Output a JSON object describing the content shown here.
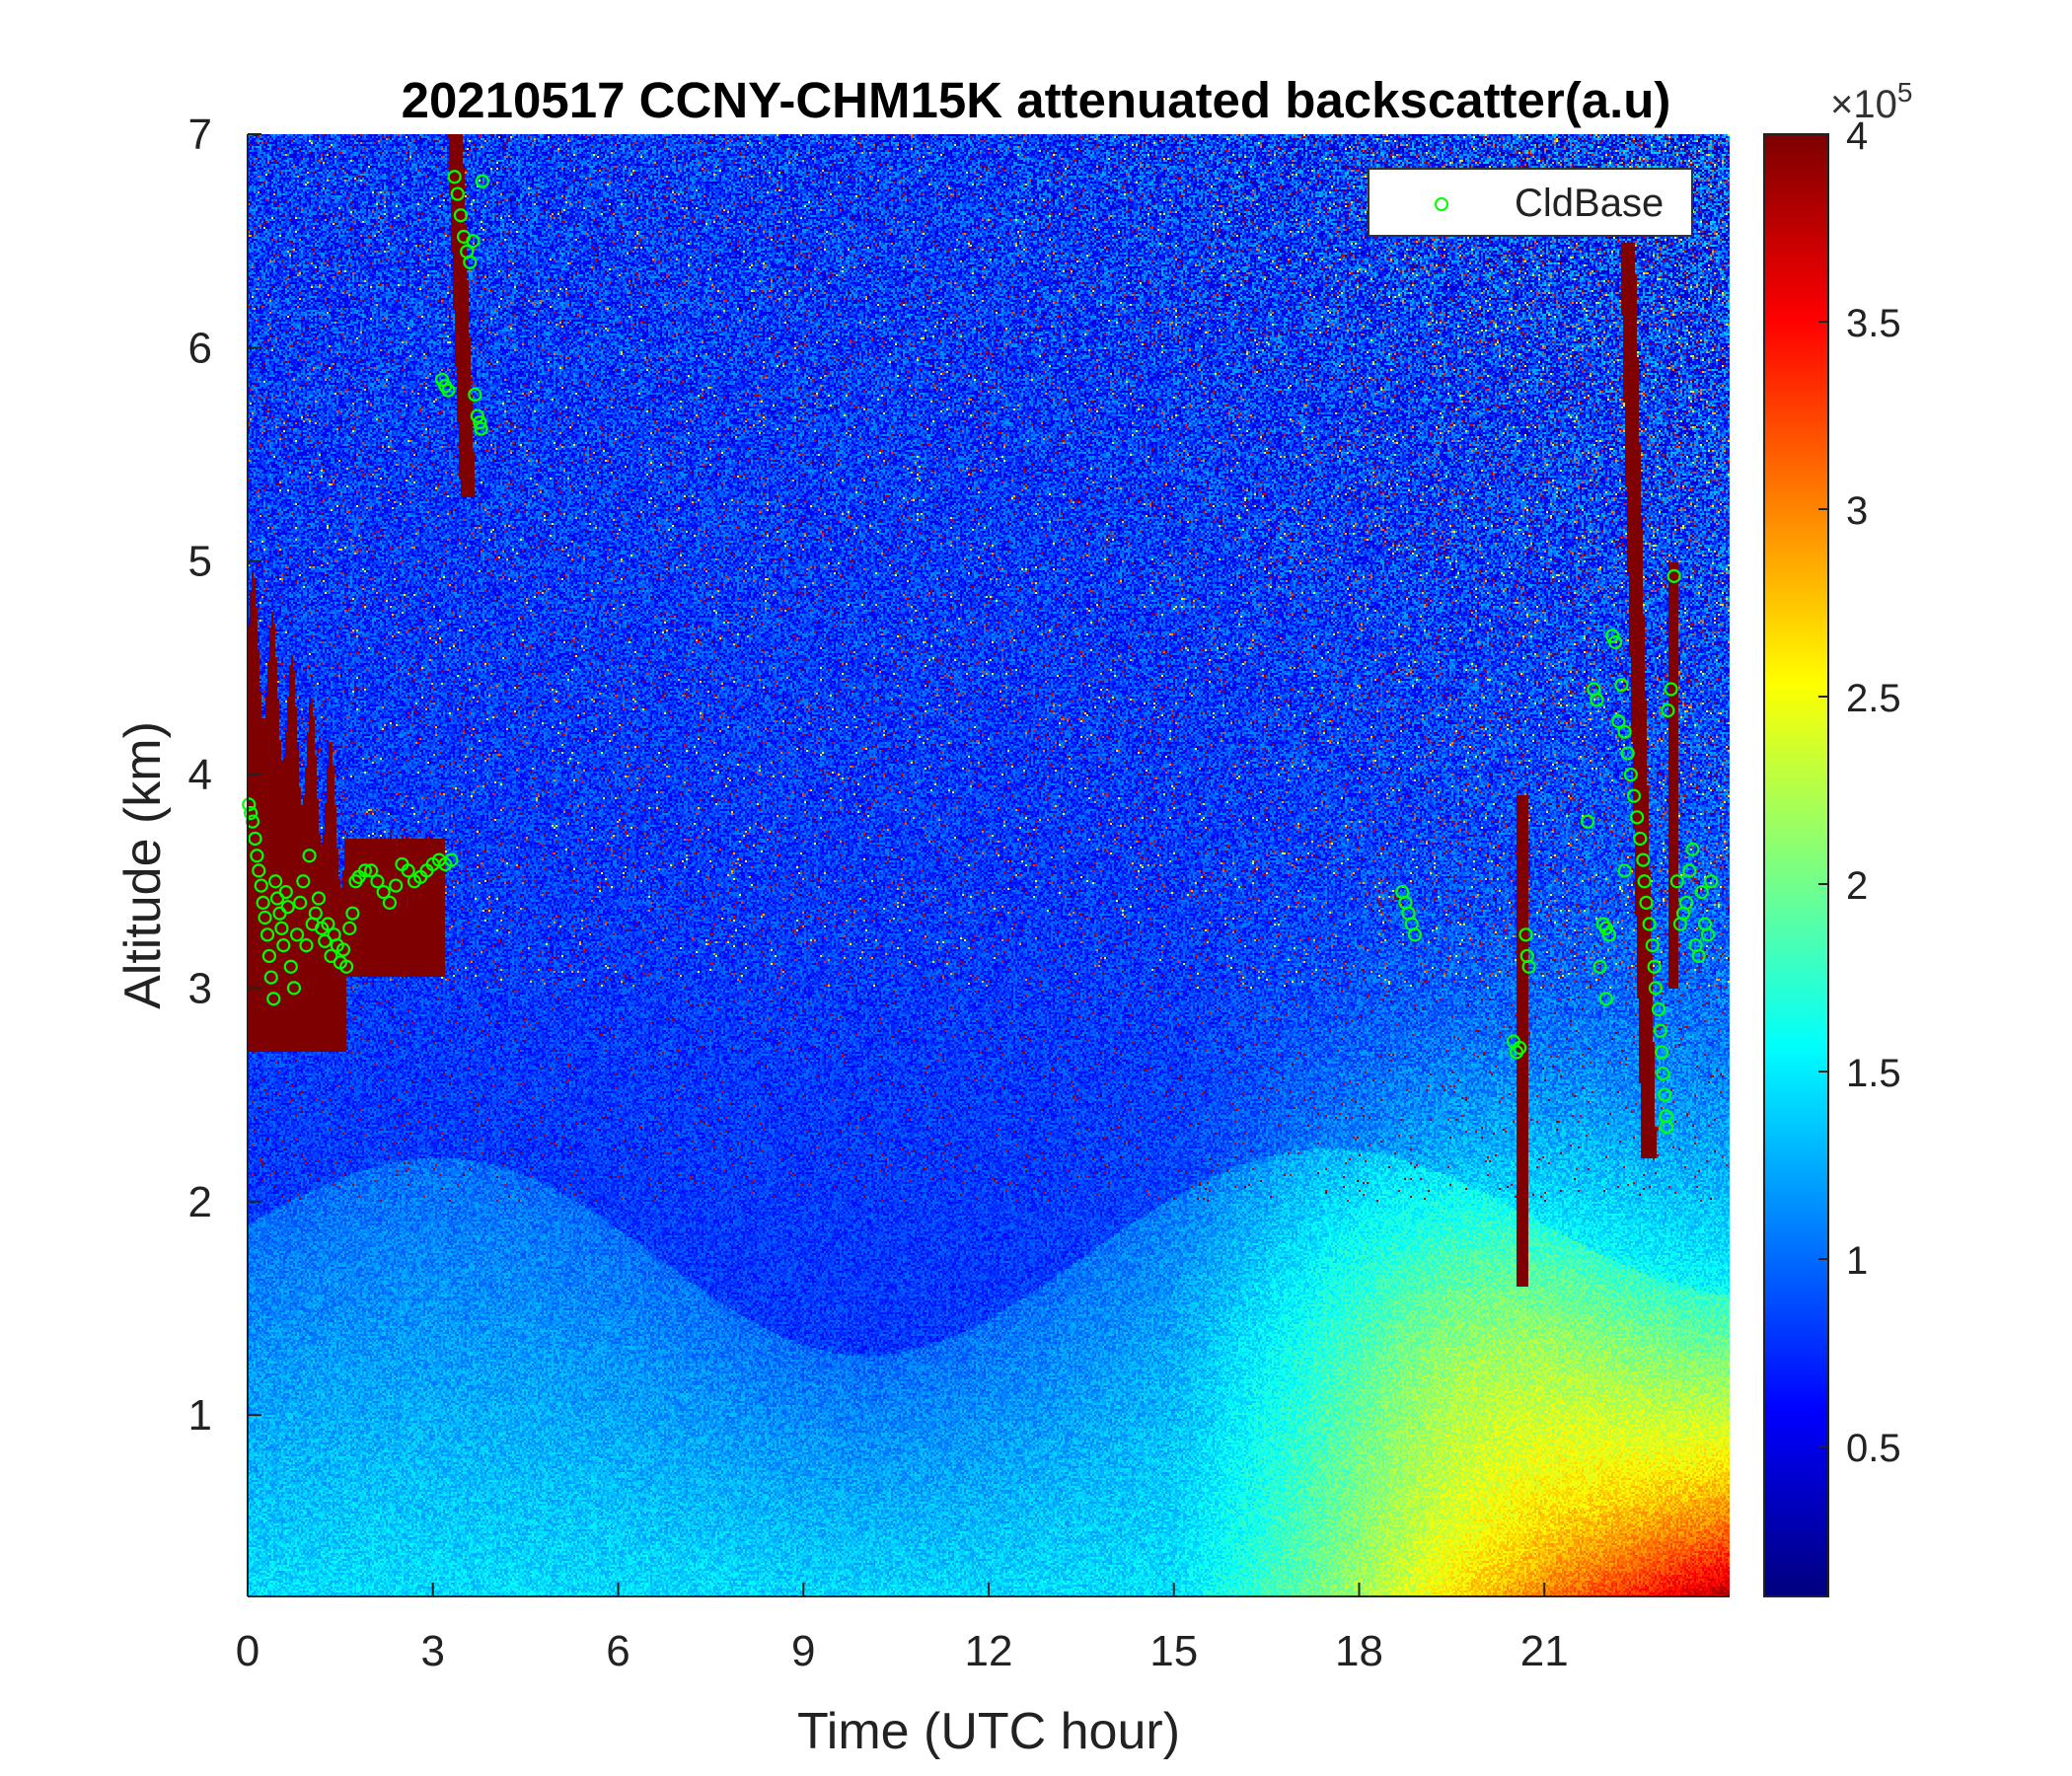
{
  "chart_data": {
    "type": "heatmap",
    "title": "20210517 CCNY-CHM15K attenuated backscatter(a.u)",
    "xlabel": "Time (UTC hour)",
    "ylabel": "Altitude (km)",
    "xlim": [
      0,
      24
    ],
    "ylim": [
      0.15,
      7
    ],
    "x_ticks": [
      0,
      3,
      6,
      9,
      12,
      15,
      18,
      21
    ],
    "y_ticks": [
      1,
      2,
      3,
      4,
      5,
      6,
      7
    ],
    "colorbar": {
      "colormap": "jet",
      "range": [
        0.1,
        4
      ],
      "ticks": [
        0.5,
        1,
        1.5,
        2,
        2.5,
        3,
        3.5,
        4
      ],
      "multiplier": "×10",
      "exponent": "5"
    },
    "legend": {
      "entries": [
        "CldBase"
      ],
      "placement": "top-right"
    },
    "series": [
      {
        "name": "CldBase",
        "marker": "circle",
        "color": "#00ff00",
        "points": [
          [
            0.02,
            3.86
          ],
          [
            0.05,
            3.82
          ],
          [
            0.08,
            3.78
          ],
          [
            0.12,
            3.7
          ],
          [
            0.15,
            3.62
          ],
          [
            0.18,
            3.55
          ],
          [
            0.22,
            3.48
          ],
          [
            0.25,
            3.4
          ],
          [
            0.28,
            3.33
          ],
          [
            0.32,
            3.25
          ],
          [
            0.35,
            3.15
          ],
          [
            0.38,
            3.05
          ],
          [
            0.42,
            2.95
          ],
          [
            0.45,
            3.5
          ],
          [
            0.48,
            3.42
          ],
          [
            0.52,
            3.35
          ],
          [
            0.55,
            3.28
          ],
          [
            0.58,
            3.2
          ],
          [
            0.62,
            3.45
          ],
          [
            0.65,
            3.38
          ],
          [
            0.7,
            3.1
          ],
          [
            0.75,
            3.0
          ],
          [
            0.8,
            3.25
          ],
          [
            0.85,
            3.4
          ],
          [
            0.9,
            3.5
          ],
          [
            0.95,
            3.2
          ],
          [
            1.0,
            3.62
          ],
          [
            1.05,
            3.3
          ],
          [
            1.1,
            3.35
          ],
          [
            1.15,
            3.42
          ],
          [
            1.2,
            3.28
          ],
          [
            1.25,
            3.22
          ],
          [
            1.3,
            3.3
          ],
          [
            1.35,
            3.15
          ],
          [
            1.4,
            3.25
          ],
          [
            1.45,
            3.2
          ],
          [
            1.5,
            3.12
          ],
          [
            1.55,
            3.18
          ],
          [
            1.6,
            3.1
          ],
          [
            1.65,
            3.28
          ],
          [
            1.7,
            3.35
          ],
          [
            1.75,
            3.5
          ],
          [
            1.8,
            3.52
          ],
          [
            1.9,
            3.55
          ],
          [
            2.0,
            3.55
          ],
          [
            2.1,
            3.5
          ],
          [
            2.2,
            3.45
          ],
          [
            2.3,
            3.4
          ],
          [
            2.4,
            3.48
          ],
          [
            2.5,
            3.58
          ],
          [
            2.6,
            3.55
          ],
          [
            2.7,
            3.5
          ],
          [
            2.8,
            3.52
          ],
          [
            2.9,
            3.55
          ],
          [
            3.0,
            3.58
          ],
          [
            3.1,
            3.6
          ],
          [
            3.2,
            3.58
          ],
          [
            3.3,
            3.6
          ],
          [
            3.15,
            5.85
          ],
          [
            3.2,
            5.82
          ],
          [
            3.25,
            5.8
          ],
          [
            3.35,
            6.8
          ],
          [
            3.4,
            6.72
          ],
          [
            3.45,
            6.62
          ],
          [
            3.5,
            6.52
          ],
          [
            3.55,
            6.45
          ],
          [
            3.6,
            6.4
          ],
          [
            3.65,
            6.5
          ],
          [
            3.68,
            5.78
          ],
          [
            3.72,
            5.68
          ],
          [
            3.76,
            5.65
          ],
          [
            3.78,
            5.62
          ],
          [
            3.8,
            6.78
          ],
          [
            18.7,
            3.45
          ],
          [
            18.75,
            3.4
          ],
          [
            18.8,
            3.35
          ],
          [
            18.85,
            3.3
          ],
          [
            18.9,
            3.25
          ],
          [
            20.5,
            2.75
          ],
          [
            20.55,
            2.7
          ],
          [
            20.6,
            2.72
          ],
          [
            20.7,
            3.25
          ],
          [
            20.72,
            3.15
          ],
          [
            20.75,
            3.1
          ],
          [
            21.7,
            3.78
          ],
          [
            21.8,
            4.4
          ],
          [
            21.85,
            4.35
          ],
          [
            21.9,
            3.1
          ],
          [
            21.95,
            3.3
          ],
          [
            22.0,
            3.28
          ],
          [
            22.05,
            3.25
          ],
          [
            22.1,
            4.65
          ],
          [
            22.15,
            4.62
          ],
          [
            22.2,
            4.25
          ],
          [
            22.25,
            4.42
          ],
          [
            22.3,
            4.2
          ],
          [
            22.35,
            4.1
          ],
          [
            22.4,
            4.0
          ],
          [
            22.45,
            3.9
          ],
          [
            22.5,
            3.8
          ],
          [
            22.55,
            3.7
          ],
          [
            22.6,
            3.6
          ],
          [
            22.62,
            3.5
          ],
          [
            22.65,
            3.4
          ],
          [
            22.7,
            3.3
          ],
          [
            22.75,
            3.2
          ],
          [
            22.78,
            3.1
          ],
          [
            22.8,
            3.0
          ],
          [
            22.85,
            2.9
          ],
          [
            22.88,
            2.8
          ],
          [
            22.9,
            2.7
          ],
          [
            22.92,
            2.6
          ],
          [
            22.95,
            2.5
          ],
          [
            22.97,
            2.4
          ],
          [
            22.98,
            2.35
          ],
          [
            23.0,
            4.3
          ],
          [
            23.05,
            4.4
          ],
          [
            23.1,
            4.93
          ],
          [
            23.15,
            3.5
          ],
          [
            23.2,
            3.3
          ],
          [
            23.25,
            3.35
          ],
          [
            23.3,
            3.4
          ],
          [
            23.35,
            3.55
          ],
          [
            23.4,
            3.65
          ],
          [
            23.45,
            3.2
          ],
          [
            23.5,
            3.15
          ],
          [
            23.55,
            3.45
          ],
          [
            23.6,
            3.3
          ],
          [
            23.65,
            3.25
          ],
          [
            23.7,
            3.5
          ],
          [
            22.0,
            2.95
          ],
          [
            22.3,
            3.55
          ]
        ]
      }
    ]
  }
}
